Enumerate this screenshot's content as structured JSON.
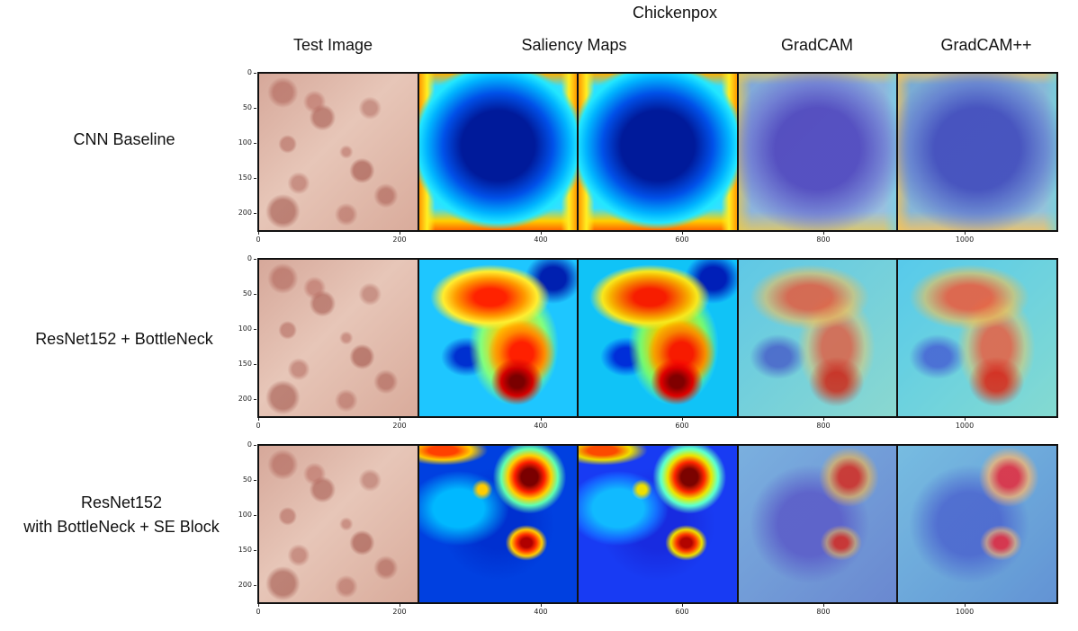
{
  "title": "Chickenpox",
  "columns": [
    "Test Image",
    "Saliency Maps",
    "GradCAM",
    "GradCAM++"
  ],
  "rows": [
    {
      "label_line1": "CNN Baseline",
      "label_line2": ""
    },
    {
      "label_line1": "ResNet152 + BottleNeck",
      "label_line2": ""
    },
    {
      "label_line1": "ResNet152",
      "label_line2": "with BottleNeck + SE Block"
    }
  ],
  "axes": {
    "y_ticks": [
      "0",
      "50",
      "100",
      "150",
      "200"
    ],
    "x_ticks": [
      "0",
      "200",
      "400",
      "600",
      "800",
      "1000"
    ]
  }
}
